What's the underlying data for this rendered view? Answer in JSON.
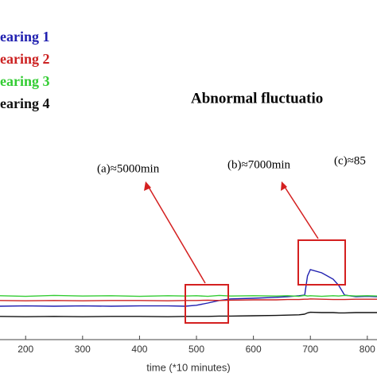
{
  "chart_data": {
    "type": "line",
    "annotations": [
      "Abnormal fluctuatio",
      "(a)≈5000min",
      "(b)≈7000min",
      "(c)≈85"
    ],
    "x_label": "time (*10 minutes)",
    "xlim": [
      155,
      817
    ],
    "xticks": [
      200,
      300,
      400,
      500,
      600,
      700,
      800
    ],
    "ylim": [
      0,
      100
    ],
    "x": [
      155,
      200,
      250,
      300,
      350,
      400,
      450,
      480,
      500,
      520,
      540,
      560,
      600,
      640,
      660,
      680,
      690,
      695,
      700,
      720,
      740,
      750,
      760,
      780,
      800,
      817
    ],
    "series": [
      {
        "name": "earing 1",
        "color": "#2020b0",
        "values": [
          10.5,
          10.6,
          10.5,
          10.6,
          10.5,
          10.6,
          10.6,
          10.5,
          10.8,
          11.5,
          12.3,
          12.8,
          13.0,
          13.3,
          13.5,
          13.8,
          14.0,
          20.0,
          22.0,
          21.0,
          19.0,
          17.0,
          14.0,
          13.5,
          13.6,
          13.5
        ]
      },
      {
        "name": "earing 2",
        "color": "#cc2222",
        "values": [
          12.3,
          12.2,
          12.3,
          12.2,
          12.3,
          12.3,
          12.2,
          12.3,
          12.3,
          12.4,
          12.3,
          12.4,
          12.5,
          12.5,
          12.6,
          12.6,
          12.7,
          12.7,
          12.8,
          12.7,
          12.6,
          12.6,
          12.6,
          12.7,
          12.7,
          12.7
        ]
      },
      {
        "name": "earing 3",
        "color": "#33cc33",
        "values": [
          13.8,
          13.6,
          13.9,
          13.7,
          13.8,
          13.6,
          13.8,
          13.7,
          13.8,
          13.6,
          13.9,
          13.7,
          13.8,
          13.7,
          13.8,
          13.6,
          13.9,
          13.7,
          13.8,
          13.6,
          13.8,
          13.7,
          13.9,
          13.7,
          13.8,
          13.7
        ]
      },
      {
        "name": "earing 4",
        "color": "#111111",
        "values": [
          7.3,
          7.2,
          7.3,
          7.2,
          7.3,
          7.3,
          7.2,
          7.3,
          7.3,
          7.3,
          7.4,
          7.4,
          7.5,
          7.6,
          7.7,
          7.8,
          8.0,
          8.4,
          8.6,
          8.5,
          8.5,
          8.4,
          8.4,
          8.5,
          8.5,
          8.5
        ]
      }
    ]
  }
}
